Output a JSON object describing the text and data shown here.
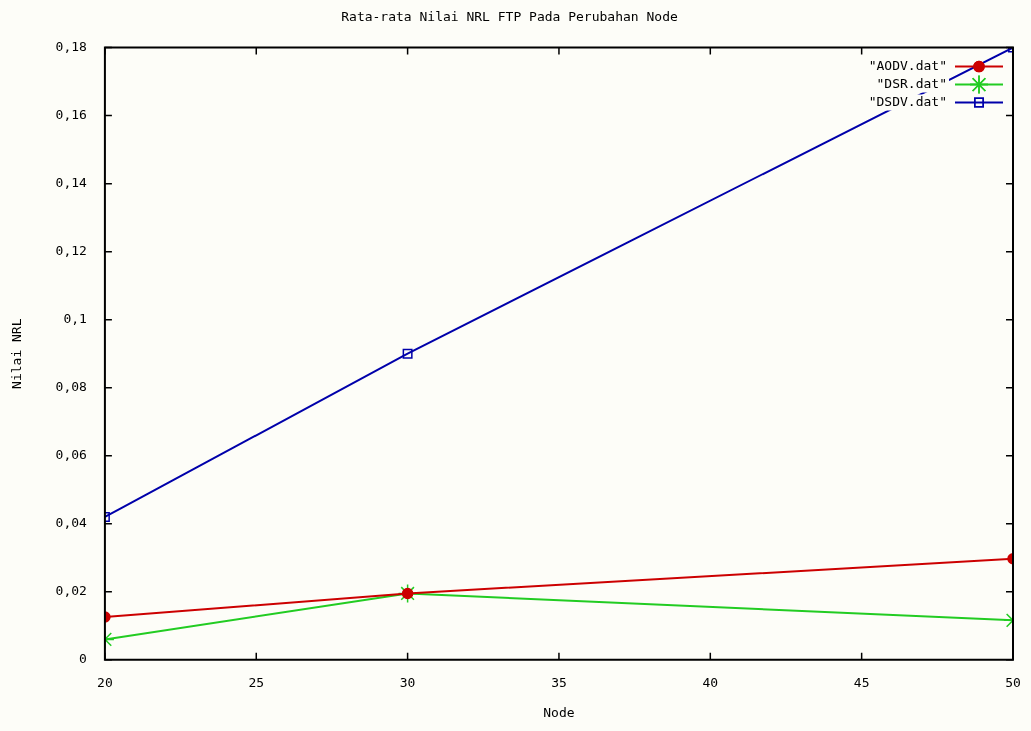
{
  "chart_data": {
    "type": "line",
    "title": "Rata-rata Nilai NRL FTP Pada Perubahan Node",
    "xlabel": "Node",
    "ylabel": "Nilai NRL",
    "x": [
      20,
      30,
      50
    ],
    "series": [
      {
        "name": "\"AODV.dat\"",
        "color": "#cc0000",
        "marker": "circle",
        "values": [
          0.0126,
          0.0195,
          0.0297
        ]
      },
      {
        "name": "\"DSR.dat\"",
        "color": "#22cc22",
        "marker": "cross",
        "values": [
          0.006,
          0.0195,
          0.0116
        ]
      },
      {
        "name": "\"DSDV.dat\"",
        "color": "#0000aa",
        "marker": "square",
        "values": [
          0.042,
          0.09,
          0.18
        ]
      }
    ],
    "xlim": [
      20,
      50
    ],
    "xticks": [
      20,
      25,
      30,
      35,
      40,
      45,
      50
    ],
    "ylim": [
      0,
      0.18
    ],
    "yticks": [
      0,
      {
        "value": 0.02,
        "label": "0,02"
      },
      {
        "value": 0.04,
        "label": "0,04"
      },
      {
        "value": 0.06,
        "label": "0,06"
      },
      {
        "value": 0.08,
        "label": "0,08"
      },
      {
        "value": 0.1,
        "label": "0,1"
      },
      {
        "value": 0.12,
        "label": "0,12"
      },
      {
        "value": 0.14,
        "label": "0,14"
      },
      {
        "value": 0.16,
        "label": "0,16"
      },
      {
        "value": 0.18,
        "label": "0,18"
      }
    ],
    "grid": false,
    "legend": "top right",
    "line_style": "solid"
  }
}
